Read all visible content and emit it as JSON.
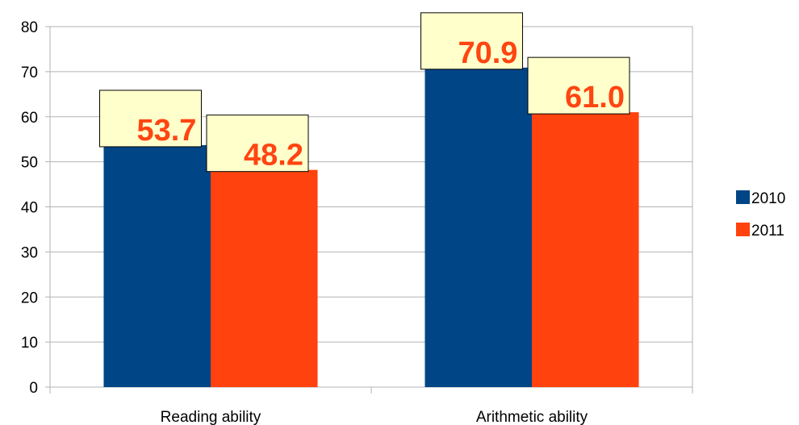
{
  "chart_data": {
    "type": "bar",
    "categories": [
      "Reading ability",
      "Arithmetic ability"
    ],
    "series": [
      {
        "name": "2010",
        "values": [
          53.7,
          70.9
        ],
        "labels": [
          "53.7",
          "70.9"
        ],
        "color": "#004586"
      },
      {
        "name": "2011",
        "values": [
          48.2,
          61.0
        ],
        "labels": [
          "48.2",
          "61.0"
        ],
        "color": "#ff420e"
      }
    ],
    "ylim": [
      0,
      80
    ],
    "yticks": [
      "0",
      "10",
      "20",
      "30",
      "40",
      "50",
      "60",
      "70",
      "80"
    ],
    "grid": true,
    "legend_position": "right",
    "data_label_color": "#ff4511",
    "data_label_box_color": "#ffffcc",
    "grid_color": "#b3b3b3"
  }
}
